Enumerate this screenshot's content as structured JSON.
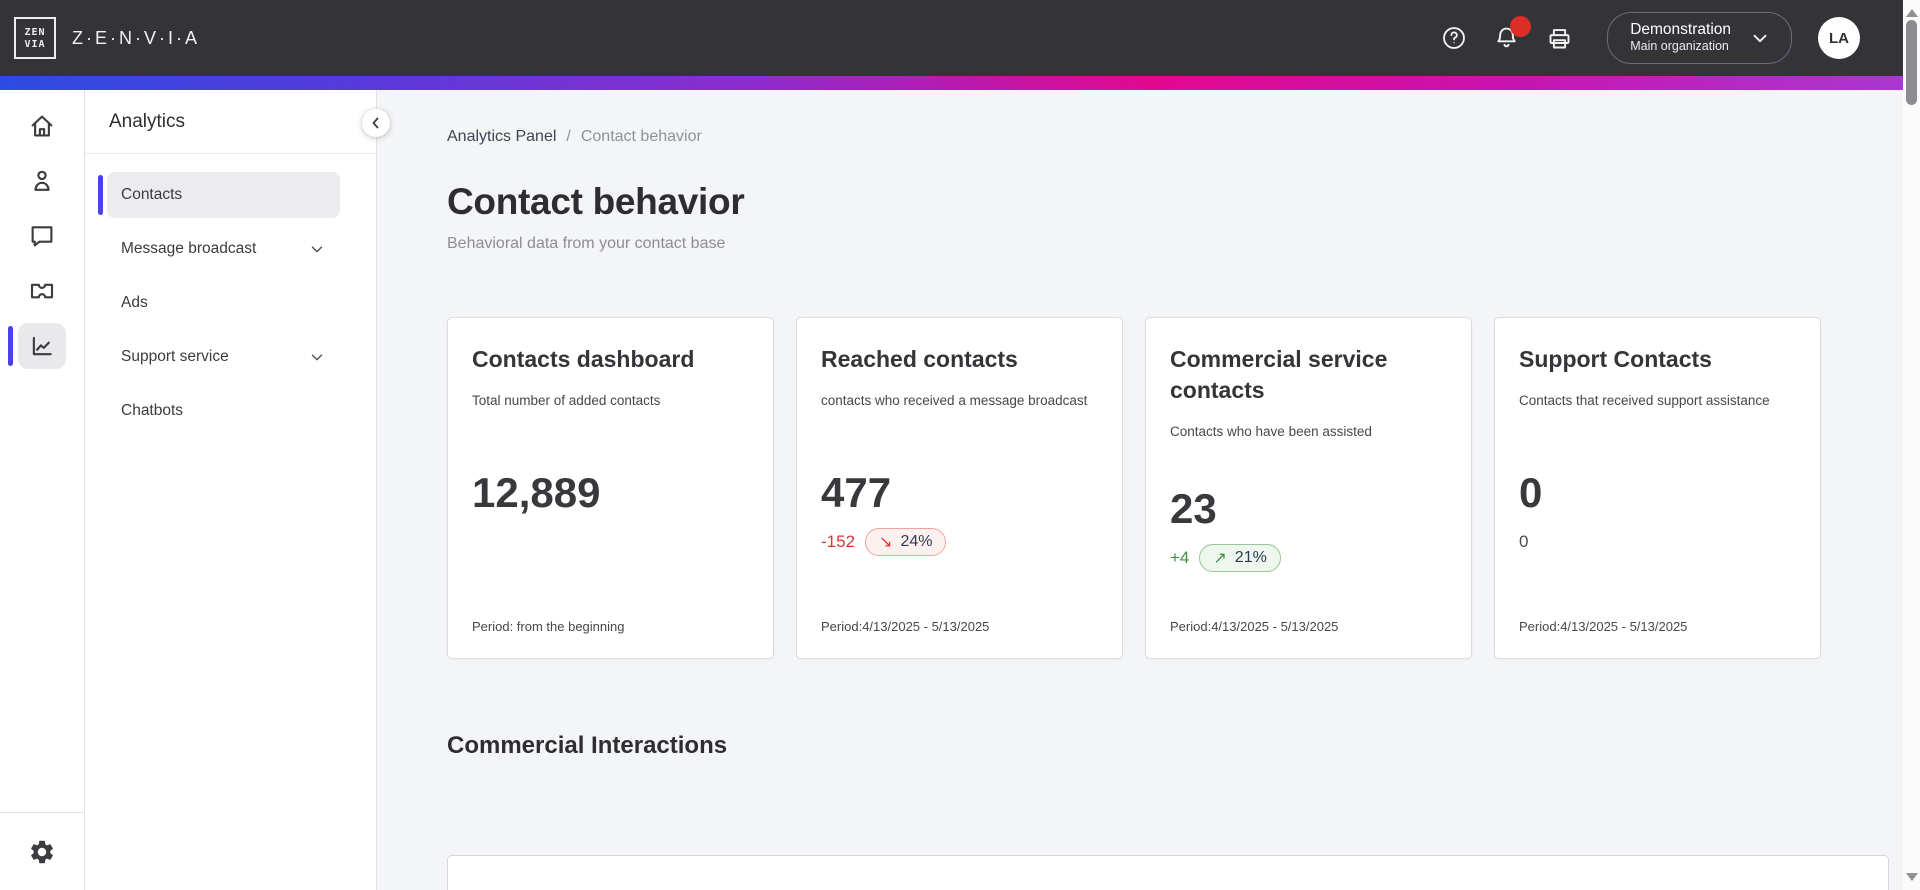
{
  "topbar": {
    "logo_text": "Z·E·N·V·I·A",
    "logo_mark_top": "ZEN",
    "logo_mark_bottom": "VIA",
    "org": {
      "name": "Demonstration",
      "subtitle": "Main organization"
    },
    "avatar_initials": "LA",
    "icons": [
      "help-circle",
      "notification-bell-with-red-badge",
      "printer"
    ]
  },
  "icon_rail": {
    "items": [
      "home",
      "contacts",
      "conversations",
      "tickets",
      "analytics"
    ],
    "active_item": "analytics",
    "bottom_item": "settings-gear"
  },
  "panel": {
    "title": "Analytics",
    "collapse_icon": "chevron-left",
    "items": [
      {
        "label": "Contacts",
        "active": true,
        "has_chevron": false
      },
      {
        "label": "Message broadcast",
        "active": false,
        "has_chevron": true
      },
      {
        "label": "Ads",
        "active": false,
        "has_chevron": false
      },
      {
        "label": "Support service",
        "active": false,
        "has_chevron": true
      },
      {
        "label": "Chatbots",
        "active": false,
        "has_chevron": false
      }
    ]
  },
  "breadcrumb": {
    "parent": "Analytics Panel",
    "separator": "/",
    "current": "Contact behavior"
  },
  "page": {
    "title": "Contact behavior",
    "subtitle": "Behavioral data from your contact base",
    "section_heading": "Commercial Interactions"
  },
  "cards": [
    {
      "title": "Contacts dashboard",
      "description": "Total number of added contacts",
      "value": "12,889",
      "delta": "",
      "badge": "",
      "badge_arrow": "",
      "trend": "none",
      "period": "Period: from the beginning"
    },
    {
      "title": "Reached contacts",
      "description": "contacts who received a message broadcast",
      "value": "477",
      "delta": "-152",
      "badge": "24%",
      "badge_arrow": "↘",
      "trend": "down",
      "period": "Period:4/13/2025 - 5/13/2025"
    },
    {
      "title": "Commercial service contacts",
      "description": "Contacts who have been assisted",
      "value": "23",
      "delta": "+4",
      "badge": "21%",
      "badge_arrow": "↗",
      "trend": "up",
      "period": "Period:4/13/2025 - 5/13/2025"
    },
    {
      "title": "Support Contacts",
      "description": "Contacts that received support assistance",
      "value": "0",
      "delta": "0",
      "badge": "",
      "badge_arrow": "",
      "trend": "neutral",
      "period": "Period:4/13/2025 - 5/13/2025"
    }
  ],
  "colors": {
    "topbar_bg": "#343438",
    "accent_purple": "#4b41ea",
    "negative_red": "#d53a35",
    "positive_green": "#3f9143",
    "gradient": [
      "#2c4ce1",
      "#8f2ccd",
      "#e2088e",
      "#a73ad2"
    ],
    "main_bg": "#f4f5f7"
  }
}
